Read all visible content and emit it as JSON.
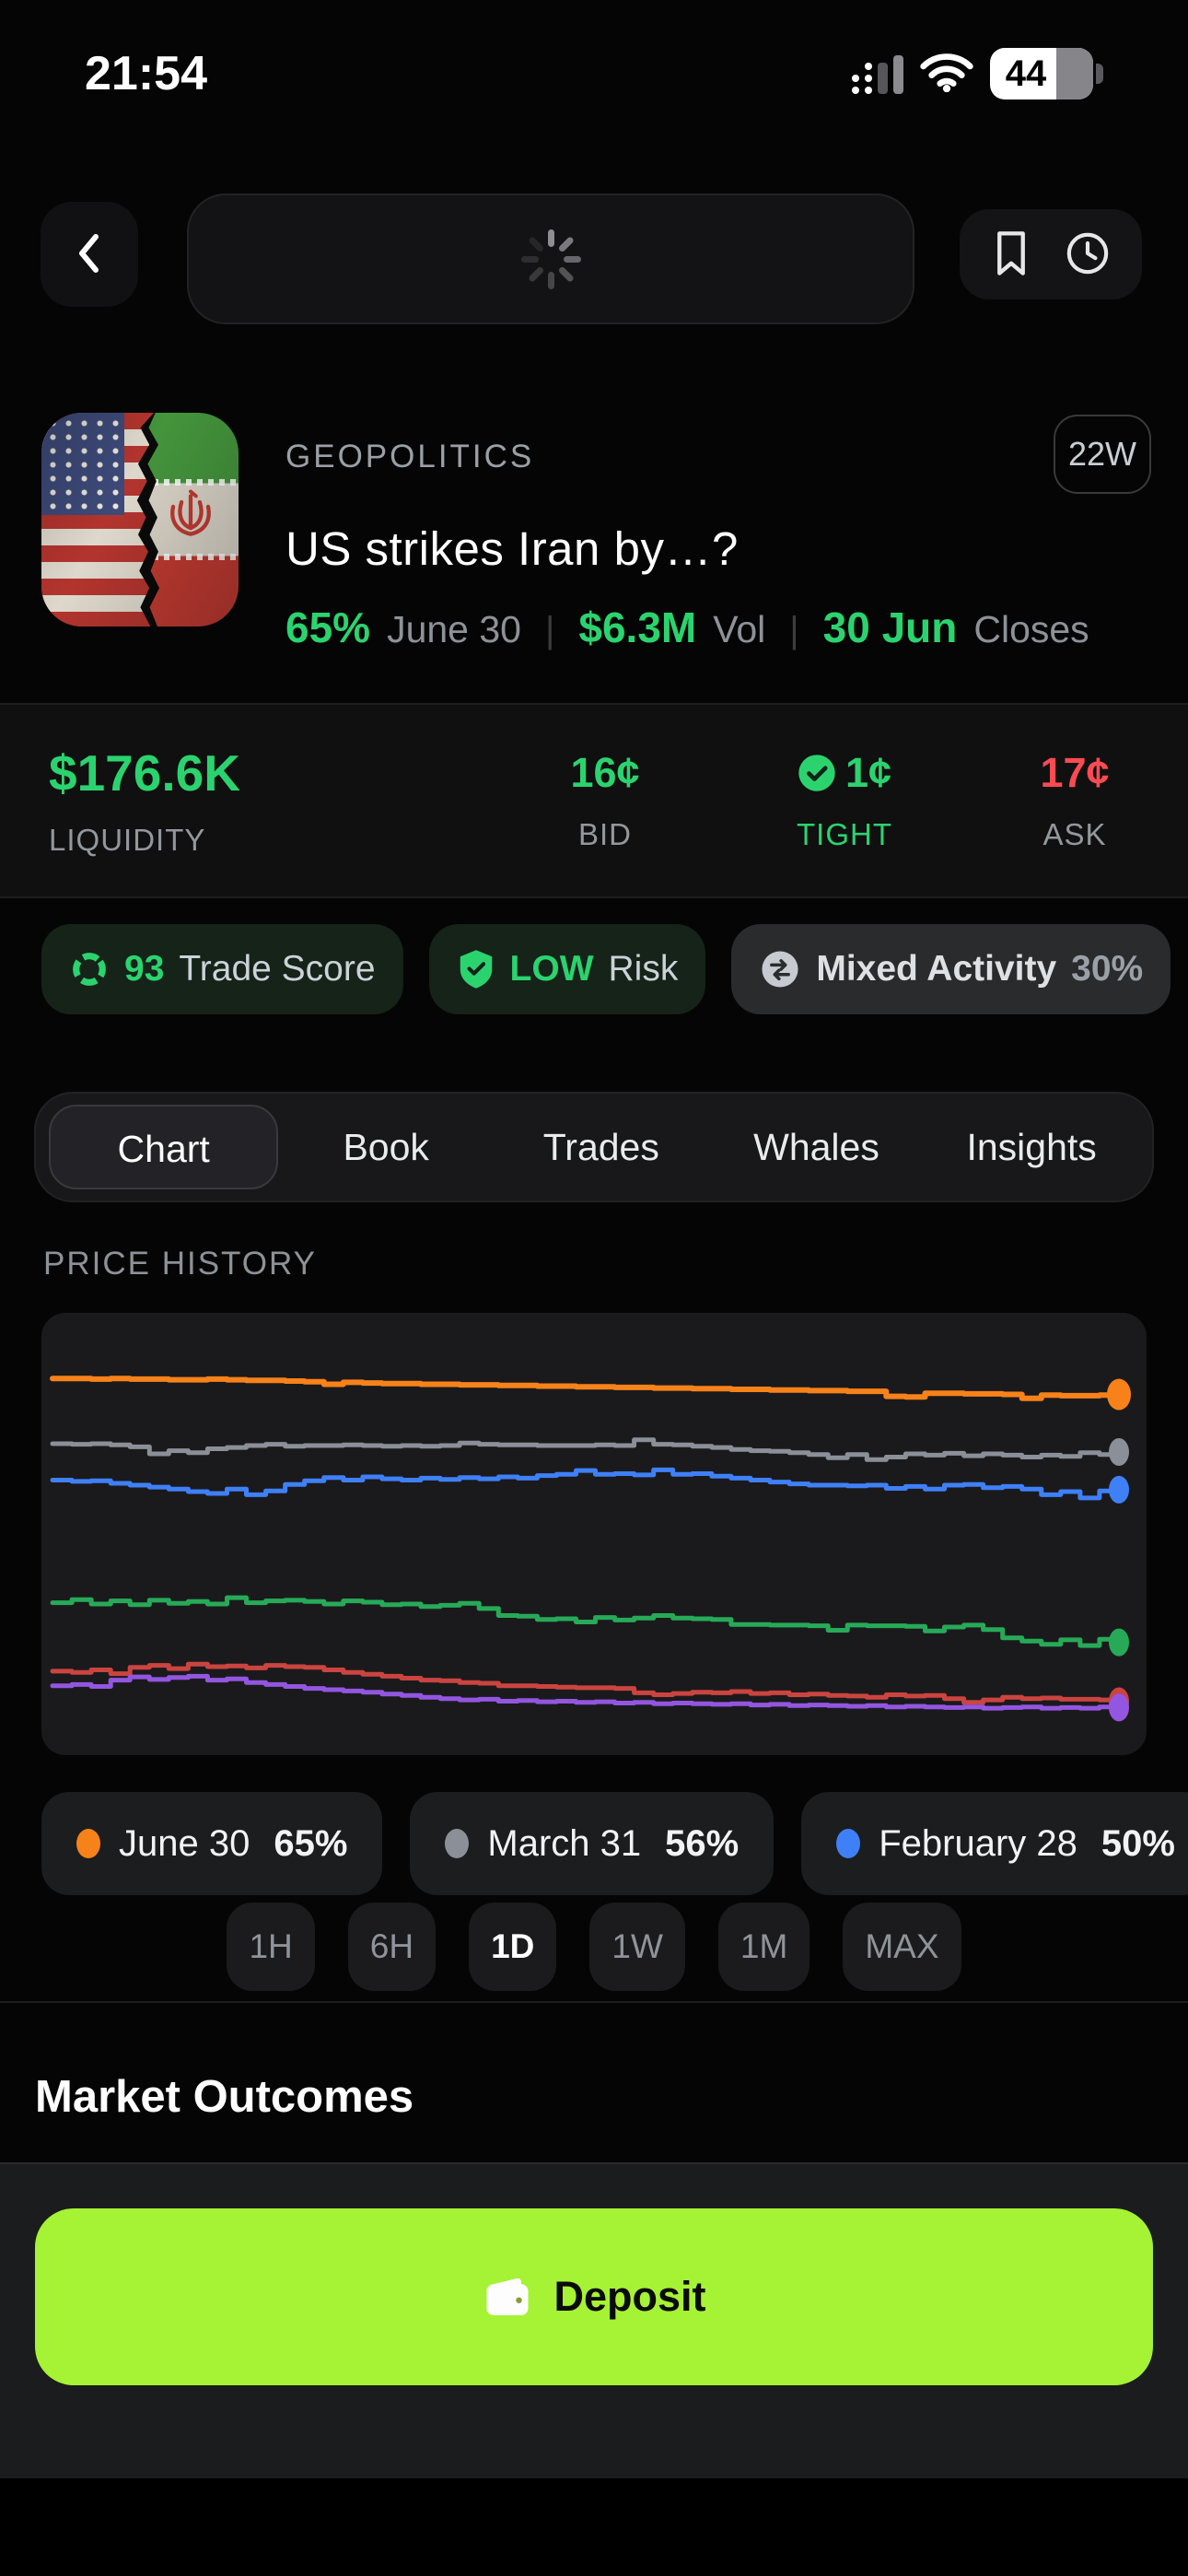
{
  "colors": {
    "green": "#2bd36f",
    "red": "#fa4b52",
    "lime": "#a6f234"
  },
  "status_bar": {
    "time": "21:54",
    "battery_level": "44"
  },
  "nav": {
    "icons": [
      "back-chevron-icon",
      "loading-spinner",
      "bookmark-icon",
      "history-clock-icon"
    ]
  },
  "market": {
    "category": "GEOPOLITICS",
    "age_badge": "22W",
    "title": "US strikes Iran by…?",
    "probability": "65%",
    "probability_label": "June 30",
    "volume": "$6.3M",
    "volume_label": "Vol",
    "closes": "30 Jun",
    "closes_label": "Closes"
  },
  "liquidity": {
    "value": "$176.6K",
    "label": "LIQUIDITY",
    "bid_value": "16¢",
    "bid_label": "BID",
    "spread_value": "1¢",
    "spread_label": "TIGHT",
    "ask_value": "17¢",
    "ask_label": "ASK"
  },
  "badges": [
    {
      "name": "trade-score",
      "icon": "gauge-ring-icon",
      "primary": "93",
      "secondary": "Trade Score",
      "variant": "green"
    },
    {
      "name": "risk",
      "icon": "shield-check-icon",
      "primary": "LOW",
      "secondary": "Risk",
      "variant": "green"
    },
    {
      "name": "activity",
      "icon": "swap-arrows-icon",
      "primary": "Mixed Activity",
      "secondary": "30%",
      "variant": "gray"
    }
  ],
  "tabs": [
    {
      "label": "Chart",
      "active": true
    },
    {
      "label": "Book",
      "active": false
    },
    {
      "label": "Trades",
      "active": false
    },
    {
      "label": "Whales",
      "active": false
    },
    {
      "label": "Insights",
      "active": false
    }
  ],
  "price_history": {
    "heading": "PRICE HISTORY"
  },
  "chart_data": {
    "type": "line",
    "title": "PRICE HISTORY",
    "x_axis": "time (1D window, unlabeled)",
    "y_unit": "percent",
    "y_domain": [
      10,
      72
    ],
    "grid": false,
    "legend_position": "below",
    "line_style": "step",
    "series": [
      {
        "name": "June 30",
        "color": "#f8821a",
        "current_pct": 65,
        "width": 6,
        "values": [
          67.5,
          67.5,
          67.4,
          67.5,
          67.4,
          67.4,
          67.3,
          67.3,
          67.4,
          67.3,
          67.2,
          67.2,
          67.1,
          67.0,
          66.6,
          66.9,
          66.8,
          66.7,
          66.7,
          66.6,
          66.6,
          66.5,
          66.5,
          66.4,
          66.4,
          66.3,
          66.3,
          66.2,
          66.2,
          66.1,
          66.1,
          66.0,
          66.0,
          65.9,
          65.9,
          65.8,
          65.8,
          65.7,
          65.7,
          65.6,
          65.6,
          65.5,
          65.5,
          64.7,
          64.6,
          65.2,
          65.2,
          65.1,
          65.1,
          65.0,
          64.4,
          64.9,
          64.8,
          64.8,
          64.9,
          65.0
        ]
      },
      {
        "name": "March 31",
        "color": "#8a8f98",
        "current_pct": 56,
        "width": 5,
        "values": [
          57.3,
          57.2,
          57.3,
          57.1,
          56.8,
          55.7,
          56.2,
          55.9,
          56.5,
          56.7,
          57.0,
          57.2,
          56.9,
          57.0,
          57.0,
          57.1,
          57.0,
          56.9,
          57.0,
          56.9,
          57.0,
          57.4,
          57.2,
          57.1,
          57.1,
          57.0,
          57.0,
          57.0,
          57.1,
          57.0,
          57.9,
          57.2,
          57.1,
          56.9,
          56.7,
          56.4,
          56.2,
          56.1,
          55.9,
          55.6,
          55.1,
          55.6,
          54.8,
          55.2,
          55.7,
          55.5,
          55.8,
          55.4,
          55.7,
          55.5,
          55.2,
          55.5,
          55.3,
          55.9,
          55.6,
          56.0
        ]
      },
      {
        "name": "February 28",
        "color": "#3f80f7",
        "current_pct": 50,
        "width": 5,
        "values": [
          51.6,
          51.4,
          51.5,
          51.1,
          50.8,
          50.5,
          50.2,
          49.8,
          49.5,
          50.2,
          49.3,
          49.9,
          50.9,
          51.5,
          52.0,
          51.6,
          52.1,
          51.8,
          51.6,
          51.9,
          51.7,
          52.0,
          51.8,
          52.1,
          51.9,
          52.3,
          52.5,
          53.1,
          52.5,
          52.6,
          52.4,
          53.2,
          52.5,
          52.6,
          52.2,
          51.9,
          51.6,
          51.3,
          51.0,
          50.8,
          50.8,
          50.7,
          50.8,
          50.3,
          50.6,
          50.2,
          50.8,
          50.9,
          50.4,
          50.6,
          50.2,
          49.3,
          49.8,
          48.8,
          49.9,
          50.1
        ]
      },
      {
        "name": "series-green",
        "color": "#27aa58",
        "width": 5,
        "values": [
          32.4,
          32.9,
          32.2,
          32.7,
          32.1,
          32.8,
          32.3,
          32.6,
          32.2,
          33.2,
          32.4,
          32.7,
          32.8,
          32.6,
          32.2,
          32.7,
          32.5,
          32.1,
          32.2,
          31.8,
          32.0,
          32.3,
          31.5,
          30.4,
          30.3,
          29.8,
          29.9,
          29.4,
          30.1,
          29.7,
          30.0,
          30.4,
          30.0,
          29.9,
          29.8,
          29.0,
          29.0,
          28.9,
          28.9,
          28.8,
          28.1,
          28.9,
          28.8,
          28.8,
          28.7,
          28.0,
          28.6,
          28.9,
          28.2,
          26.9,
          26.4,
          25.9,
          26.6,
          25.7,
          26.7,
          26.2
        ]
      },
      {
        "name": "series-red",
        "color": "#cb4440",
        "width": 5,
        "values": [
          21.7,
          21.5,
          21.9,
          21.3,
          22.3,
          22.6,
          22.1,
          22.8,
          22.4,
          22.5,
          22.2,
          22.6,
          22.4,
          22.3,
          21.9,
          21.5,
          21.2,
          20.9,
          20.6,
          20.3,
          20.2,
          19.9,
          19.8,
          19.4,
          19.4,
          19.3,
          19.2,
          19.1,
          19.1,
          19.0,
          18.3,
          18.0,
          18.2,
          18.4,
          18.3,
          18.5,
          18.2,
          18.3,
          18.0,
          18.1,
          17.9,
          17.8,
          17.6,
          18.0,
          17.8,
          17.9,
          17.4,
          16.8,
          17.2,
          17.6,
          17.4,
          17.5,
          17.3,
          17.3,
          17.2,
          17.0
        ]
      },
      {
        "name": "series-purple",
        "color": "#9356e0",
        "width": 5,
        "values": [
          19.4,
          19.6,
          19.3,
          20.3,
          20.8,
          20.4,
          20.7,
          20.9,
          20.3,
          20.5,
          19.9,
          19.6,
          19.3,
          19.0,
          18.8,
          18.6,
          18.4,
          18.1,
          17.9,
          17.6,
          17.4,
          17.2,
          17.3,
          17.0,
          17.1,
          16.9,
          17.0,
          16.8,
          16.9,
          16.7,
          16.8,
          16.6,
          16.7,
          16.6,
          16.5,
          16.6,
          16.4,
          16.5,
          16.3,
          16.4,
          16.3,
          16.2,
          16.3,
          16.1,
          16.2,
          16.1,
          16.0,
          16.1,
          15.9,
          16.0,
          16.1,
          15.9,
          16.0,
          15.9,
          16.1,
          16.0
        ]
      }
    ]
  },
  "legend": [
    {
      "label": "June 30",
      "value": "65%",
      "color": "#f8821a",
      "partial": false
    },
    {
      "label": "March 31",
      "value": "56%",
      "color": "#8a8f98",
      "partial": false
    },
    {
      "label": "February 28",
      "value": "50%",
      "color": "#3f80f7",
      "partial": false
    },
    {
      "label": "",
      "value": "",
      "color": "",
      "partial": true
    }
  ],
  "timeframes": [
    {
      "label": "1H",
      "active": false
    },
    {
      "label": "6H",
      "active": false
    },
    {
      "label": "1D",
      "active": true
    },
    {
      "label": "1W",
      "active": false
    },
    {
      "label": "1M",
      "active": false
    },
    {
      "label": "MAX",
      "active": false
    }
  ],
  "outcomes": {
    "heading": "Market Outcomes"
  },
  "deposit": {
    "label": "Deposit",
    "icon": "wallet-icon",
    "background": "#a6f234"
  }
}
